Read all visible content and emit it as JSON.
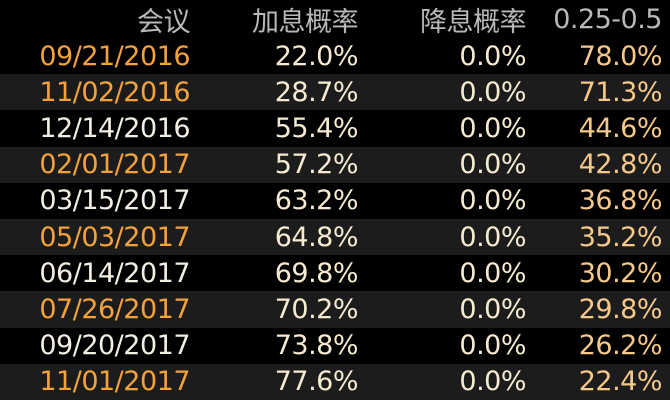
{
  "table": {
    "header": [
      "会议",
      "加息概率",
      "降息概率",
      "0.25-0.5"
    ],
    "rows": [
      [
        "09/21/2016",
        "22.0%",
        "0.0%",
        "78.0%"
      ],
      [
        "11/02/2016",
        "28.7%",
        "0.0%",
        "71.3%"
      ],
      [
        "12/14/2016",
        "55.4%",
        "0.0%",
        "44.6%"
      ],
      [
        "02/01/2017",
        "57.2%",
        "0.0%",
        "42.8%"
      ],
      [
        "03/15/2017",
        "63.2%",
        "0.0%",
        "36.8%"
      ],
      [
        "05/03/2017",
        "64.8%",
        "0.0%",
        "35.2%"
      ],
      [
        "06/14/2017",
        "69.8%",
        "0.0%",
        "30.2%"
      ],
      [
        "07/26/2017",
        "70.2%",
        "0.0%",
        "29.8%"
      ],
      [
        "09/20/2017",
        "73.8%",
        "0.0%",
        "26.2%"
      ],
      [
        "11/01/2017",
        "77.6%",
        "0.0%",
        "22.4%"
      ]
    ]
  }
}
